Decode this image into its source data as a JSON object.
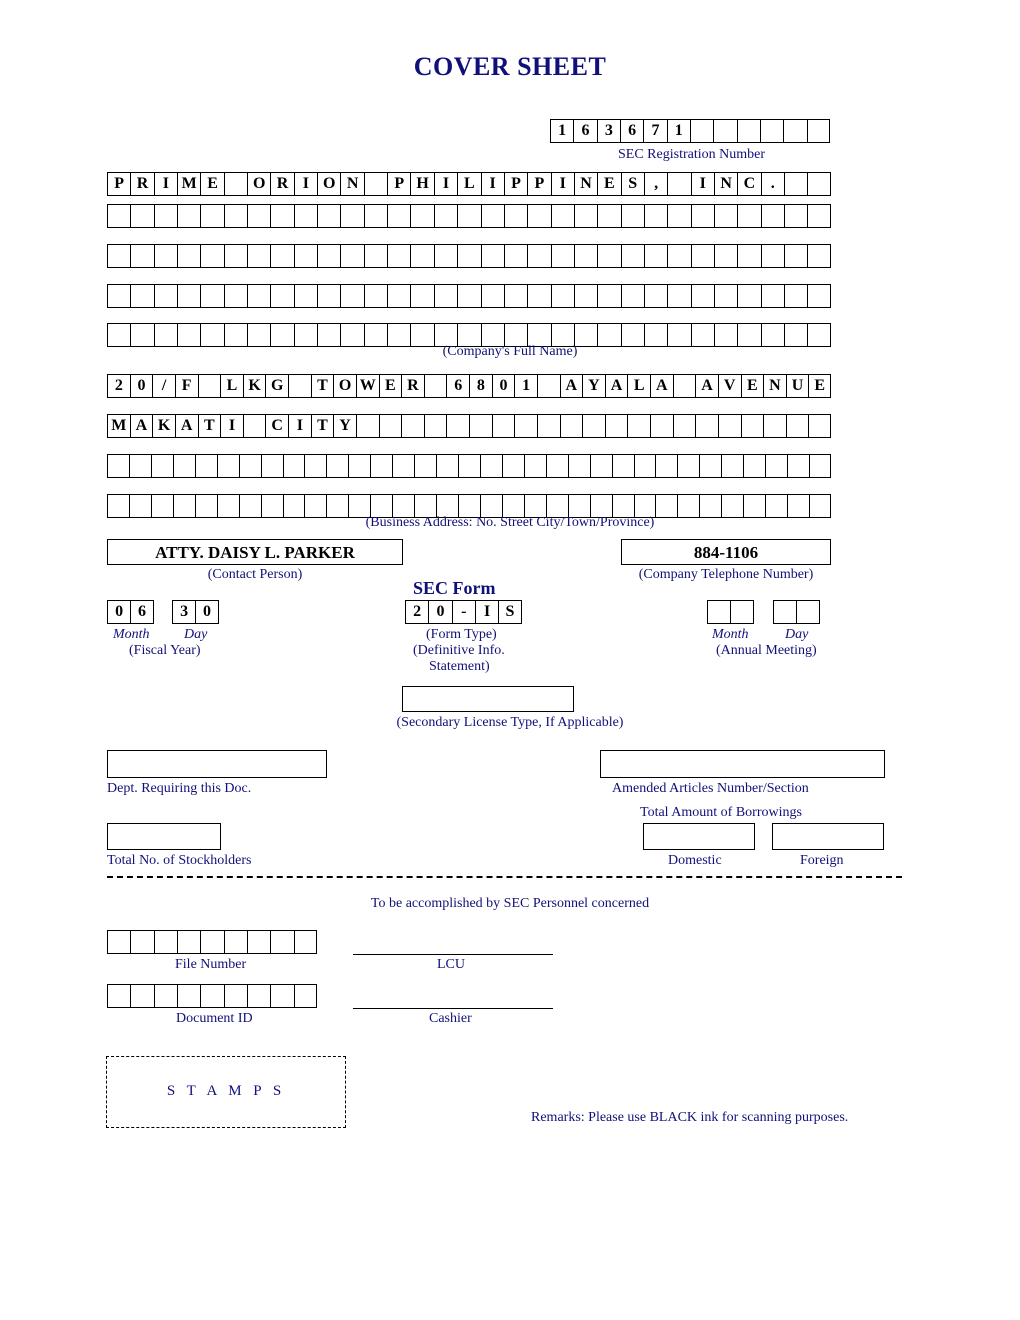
{
  "title": "COVER SHEET",
  "sec_reg": {
    "cells": [
      "1",
      "6",
      "3",
      "6",
      "7",
      "1",
      "",
      "",
      "",
      "",
      "",
      ""
    ],
    "label": "SEC Registration Number"
  },
  "company_name": {
    "rows": [
      [
        "P",
        "R",
        "I",
        "M",
        "E",
        "",
        "O",
        "R",
        "I",
        "O",
        "N",
        "",
        "P",
        "H",
        "I",
        "L",
        "I",
        "P",
        "P",
        "I",
        "N",
        "E",
        "S",
        ",",
        "",
        "I",
        "N",
        "C",
        ".",
        "",
        ""
      ],
      [
        "",
        "",
        "",
        "",
        "",
        "",
        "",
        "",
        "",
        "",
        "",
        "",
        "",
        "",
        "",
        "",
        "",
        "",
        "",
        "",
        "",
        "",
        "",
        "",
        "",
        "",
        "",
        "",
        "",
        "",
        ""
      ],
      [
        "",
        "",
        "",
        "",
        "",
        "",
        "",
        "",
        "",
        "",
        "",
        "",
        "",
        "",
        "",
        "",
        "",
        "",
        "",
        "",
        "",
        "",
        "",
        "",
        "",
        "",
        "",
        "",
        "",
        "",
        ""
      ],
      [
        "",
        "",
        "",
        "",
        "",
        "",
        "",
        "",
        "",
        "",
        "",
        "",
        "",
        "",
        "",
        "",
        "",
        "",
        "",
        "",
        "",
        "",
        "",
        "",
        "",
        "",
        "",
        "",
        "",
        "",
        ""
      ],
      [
        "",
        "",
        "",
        "",
        "",
        "",
        "",
        "",
        "",
        "",
        "",
        "",
        "",
        "",
        "",
        "",
        "",
        "",
        "",
        "",
        "",
        "",
        "",
        "",
        "",
        "",
        "",
        "",
        "",
        "",
        ""
      ]
    ],
    "label": "(Company's Full Name)"
  },
  "address": {
    "rows": [
      [
        "2",
        "0",
        "/",
        "F",
        "",
        "L",
        "K",
        "G",
        "",
        "T",
        "O",
        "W",
        "E",
        "R",
        "",
        "6",
        "8",
        "0",
        "1",
        "",
        "A",
        "Y",
        "A",
        "L",
        "A",
        "",
        "A",
        "V",
        "E",
        "N",
        "U",
        "E"
      ],
      [
        "M",
        "A",
        "K",
        "A",
        "T",
        "I",
        "",
        "C",
        "I",
        "T",
        "Y",
        "",
        "",
        "",
        "",
        "",
        "",
        "",
        "",
        "",
        "",
        "",
        "",
        "",
        "",
        "",
        "",
        "",
        "",
        "",
        "",
        ""
      ],
      [
        "",
        "",
        "",
        "",
        "",
        "",
        "",
        "",
        "",
        "",
        "",
        "",
        "",
        "",
        "",
        "",
        "",
        "",
        "",
        "",
        "",
        "",
        "",
        "",
        "",
        "",
        "",
        "",
        "",
        "",
        "",
        ""
      ],
      [
        "",
        "",
        "",
        "",
        "",
        "",
        "",
        "",
        "",
        "",
        "",
        "",
        "",
        "",
        "",
        "",
        "",
        "",
        "",
        "",
        "",
        "",
        "",
        "",
        "",
        "",
        "",
        "",
        "",
        "",
        "",
        ""
      ]
    ],
    "label": "(Business Address: No. Street City/Town/Province)"
  },
  "contact": {
    "person": "ATTY. DAISY L. PARKER",
    "label": "(Contact Person)"
  },
  "phone": {
    "number": "884-1106",
    "label": "(Company Telephone Number)"
  },
  "fiscal": {
    "month": [
      "0",
      "6"
    ],
    "day": [
      "3",
      "0"
    ],
    "month_label": "Month",
    "day_label": "Day",
    "fy_label": "(Fiscal Year)"
  },
  "sec_form": {
    "head": "SEC Form",
    "cells": [
      "2",
      "0",
      "-",
      "I",
      "S"
    ],
    "ft_label": "(Form Type)",
    "desc1": "(Definitive Info.",
    "desc2": "Statement)"
  },
  "annual": {
    "month_label": "Month",
    "day_label": "Day",
    "am_label": "(Annual Meeting)"
  },
  "secondary_license": "(Secondary License Type, If Applicable)",
  "dept_req": "Dept. Requiring this Doc.",
  "amended": "Amended Articles Number/Section",
  "borrowings": "Total Amount of Borrowings",
  "stockholders": "Total No. of Stockholders",
  "domestic": "Domestic",
  "foreign": "Foreign",
  "sec_personnel": "To be accomplished by SEC Personnel concerned",
  "file_number": "File Number",
  "lcu": "LCU",
  "document_id": "Document ID",
  "cashier": "Cashier",
  "stamps": "S T A M P S",
  "remarks": "Remarks: Please use BLACK ink for scanning purposes."
}
